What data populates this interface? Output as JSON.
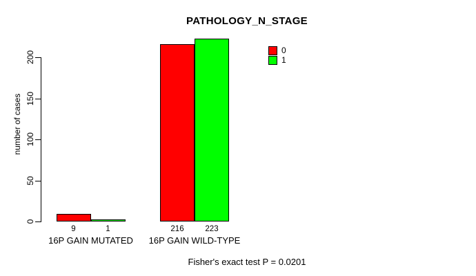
{
  "chart_data": {
    "type": "bar",
    "title": "PATHOLOGY_N_STAGE",
    "ylabel": "number of cases",
    "xlabel": "",
    "ylim": [
      0,
      200
    ],
    "yticks": [
      0,
      50,
      100,
      150,
      200
    ],
    "grid": false,
    "legend_position": "top-right-inside",
    "categories": [
      "16P GAIN MUTATED",
      "16P GAIN WILD-TYPE"
    ],
    "series": [
      {
        "name": "0",
        "color": "#FF0000",
        "values": [
          9,
          216
        ]
      },
      {
        "name": "1",
        "color": "#00FF00",
        "values": [
          1,
          223
        ]
      }
    ],
    "bar_value_labels": [
      [
        "9",
        "216"
      ],
      [
        "1",
        "223"
      ]
    ],
    "annotation": "Fisher's exact test P = 0.0201"
  },
  "colors": {
    "background": "#FFFFFF",
    "axis": "#000000",
    "text": "#000000",
    "series_0": "#FF0000",
    "series_1": "#00FF00"
  }
}
